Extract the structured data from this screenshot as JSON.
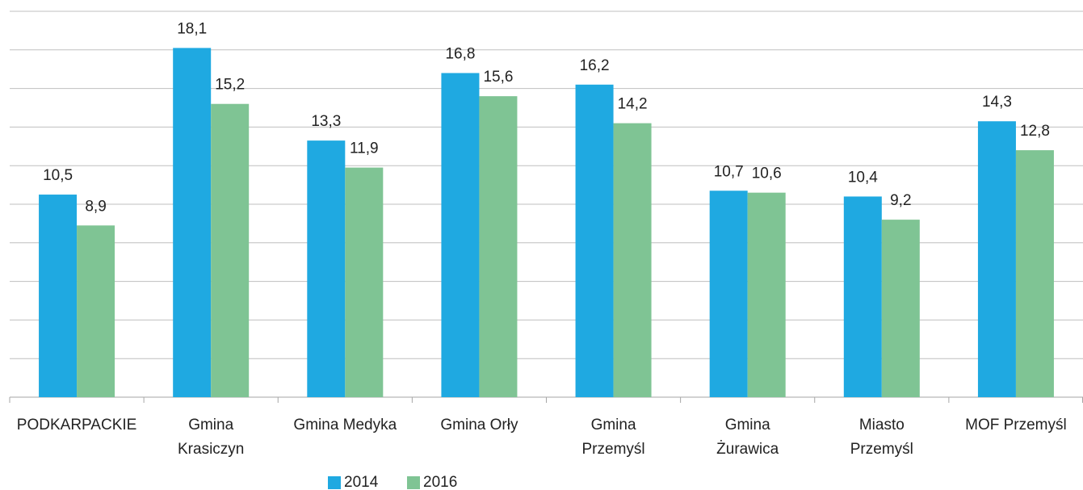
{
  "chart_data": {
    "type": "bar",
    "categories": [
      "PODKARPACKIE",
      "Gmina\nKrasiczyn",
      "Gmina Medyka",
      "Gmina Orły",
      "Gmina\nPrzemyśl",
      "Gmina\nŻurawica",
      "Miasto\nPrzemyśl",
      "MOF Przemyśl"
    ],
    "series": [
      {
        "name": "2014",
        "color": "#1fa9e1",
        "values": [
          10.5,
          18.1,
          13.3,
          16.8,
          16.2,
          10.7,
          10.4,
          14.3
        ],
        "value_labels": [
          "10,5",
          "18,1",
          "13,3",
          "16,8",
          "16,2",
          "10,7",
          "10,4",
          "14,3"
        ]
      },
      {
        "name": "2016",
        "color": "#7fc494",
        "values": [
          8.9,
          15.2,
          11.9,
          15.6,
          14.2,
          10.6,
          9.2,
          12.8
        ],
        "value_labels": [
          "8,9",
          "15,2",
          "11,9",
          "15,6",
          "14,2",
          "10,6",
          "9,2",
          "12,8"
        ]
      }
    ],
    "ylim": [
      0,
      20
    ],
    "yticks": [
      0,
      2,
      4,
      6,
      8,
      10,
      12,
      14,
      16,
      18,
      20
    ],
    "grid": true,
    "legend": "bottom"
  }
}
